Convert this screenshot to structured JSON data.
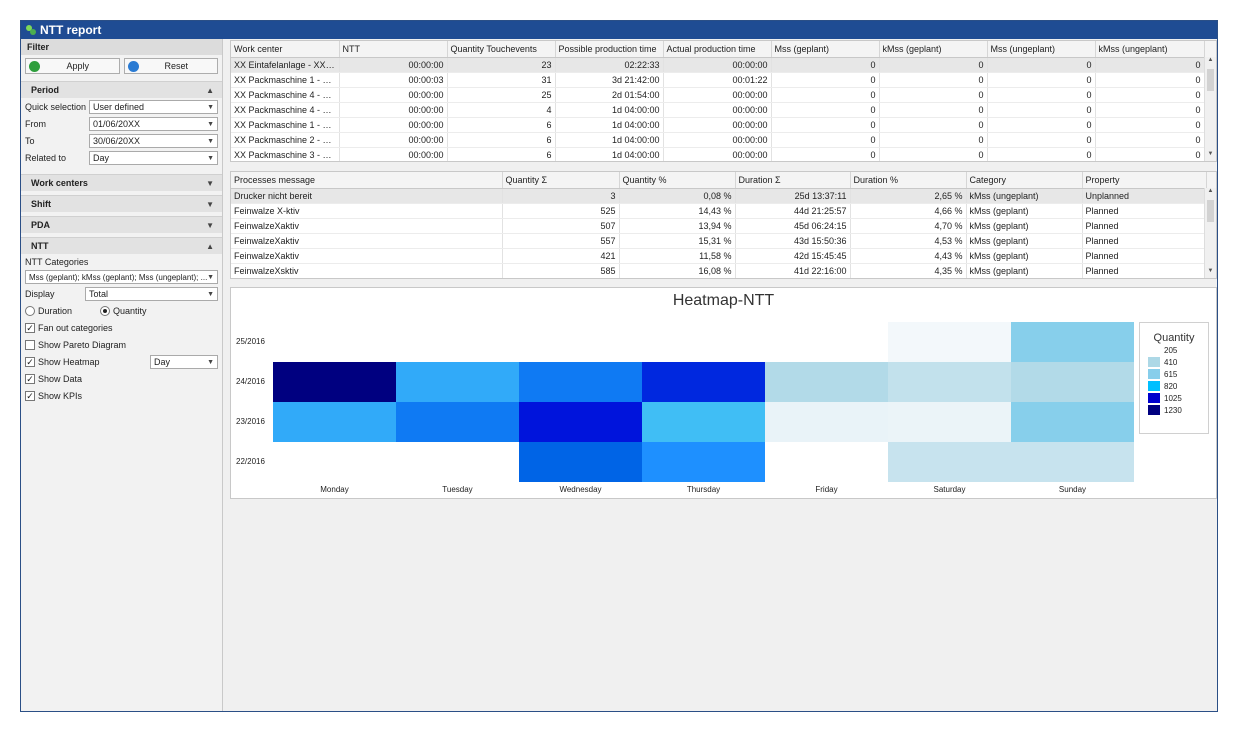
{
  "window": {
    "title": "NTT report"
  },
  "filter": {
    "header": "Filter",
    "apply_label": "Apply",
    "reset_label": "Reset",
    "period": {
      "header": "Period",
      "quick_selection_label": "Quick selection",
      "quick_selection_value": "User defined",
      "from_label": "From",
      "from_value": "01/06/20XX",
      "to_label": "To",
      "to_value": "30/06/20XX",
      "related_label": "Related to",
      "related_value": "Day"
    },
    "work_centers_header": "Work centers",
    "shift_header": "Shift",
    "pda_header": "PDA",
    "ntt": {
      "header": "NTT",
      "categories_label": "NTT Categories",
      "categories_value": "Mss (geplant); kMss (geplant); Mss (ungeplant); ...",
      "display_label": "Display",
      "display_value": "Total",
      "radio_duration": "Duration",
      "radio_quantity": "Quantity",
      "fan_out": "Fan out categories",
      "pareto": "Show Pareto Diagram",
      "heatmap": "Show Heatmap",
      "heatmap_value": "Day",
      "show_data": "Show Data",
      "show_kpis": "Show KPIs"
    }
  },
  "grid1": {
    "columns": [
      "Work center",
      "NTT",
      "Quantity Touchevents",
      "Possible production time",
      "Actual production time",
      "Mss (geplant)",
      "kMss (geplant)",
      "Mss (ungeplant)",
      "kMss (ungeplant)"
    ],
    "rows": [
      [
        "XX Eintafelanlage - XX Eint...",
        "00:00:00",
        "23",
        "02:22:33",
        "00:00:00",
        "0",
        "0",
        "0",
        "0"
      ],
      [
        "XX Packmaschine 1 - XXPa...",
        "00:00:03",
        "31",
        "3d 21:42:00",
        "00:01:22",
        "0",
        "0",
        "0",
        "0"
      ],
      [
        "XX Packmaschine 4 - XXPa...",
        "00:00:00",
        "25",
        "2d 01:54:00",
        "00:00:00",
        "0",
        "0",
        "0",
        "0"
      ],
      [
        "XX Packmaschine 4 - XXPa...",
        "00:00:00",
        "4",
        "1d 04:00:00",
        "00:00:00",
        "0",
        "0",
        "0",
        "0"
      ],
      [
        "XX Packmaschine 1 - XXPa...",
        "00:00:00",
        "6",
        "1d 04:00:00",
        "00:00:00",
        "0",
        "0",
        "0",
        "0"
      ],
      [
        "XX Packmaschine 2 - XXPa...",
        "00:00:00",
        "6",
        "1d 04:00:00",
        "00:00:00",
        "0",
        "0",
        "0",
        "0"
      ],
      [
        "XX Packmaschine 3 - XXPa...",
        "00:00:00",
        "6",
        "1d 04:00:00",
        "00:00:00",
        "0",
        "0",
        "0",
        "0"
      ]
    ]
  },
  "grid2": {
    "columns": [
      "Processes message",
      "Quantity Σ",
      "Quantity %",
      "Duration Σ",
      "Duration %",
      "Category",
      "Property"
    ],
    "rows": [
      [
        "Drucker nicht bereit",
        "3",
        "0,08 %",
        "25d 13:37:11",
        "2,65 %",
        "kMss (ungeplant)",
        "Unplanned"
      ],
      [
        "Feinwalze X-ktiv",
        "525",
        "14,43 %",
        "44d 21:25:57",
        "4,66 %",
        "kMss (geplant)",
        "Planned"
      ],
      [
        "FeinwalzeXaktiv",
        "507",
        "13,94 %",
        "45d 06:24:15",
        "4,70 %",
        "kMss (geplant)",
        "Planned"
      ],
      [
        "FeinwalzeXaktiv",
        "557",
        "15,31 %",
        "43d 15:50:36",
        "4,53 %",
        "kMss (geplant)",
        "Planned"
      ],
      [
        "FeinwalzeXaktiv",
        "421",
        "11,58 %",
        "42d 15:45:45",
        "4,43 %",
        "kMss (geplant)",
        "Planned"
      ],
      [
        "FeinwalzeXsktiv",
        "585",
        "16,08 %",
        "41d 22:16:00",
        "4,35 %",
        "kMss (geplant)",
        "Planned"
      ]
    ]
  },
  "chart_data": {
    "type": "heatmap",
    "title": "Heatmap-NTT",
    "x": [
      "Monday",
      "Tuesday",
      "Wednesday",
      "Thursday",
      "Friday",
      "Saturday",
      "Sunday"
    ],
    "y": [
      "25/2016",
      "24/2016",
      "23/2016",
      "22/2016"
    ],
    "values": [
      [
        0,
        0,
        0,
        0,
        0,
        60,
        410
      ],
      [
        1230,
        600,
        800,
        1050,
        330,
        270,
        330
      ],
      [
        600,
        800,
        1100,
        520,
        110,
        100,
        410
      ],
      [
        0,
        0,
        900,
        700,
        0,
        250,
        250
      ]
    ],
    "legend": {
      "title": "Quantity",
      "labels": [
        "205",
        "410",
        "615",
        "820",
        "1025",
        "1230"
      ],
      "colors": [
        "#ffffff",
        "#add8e6",
        "#87ceeb",
        "#00bfff",
        "#0000cd",
        "#000080"
      ]
    }
  }
}
